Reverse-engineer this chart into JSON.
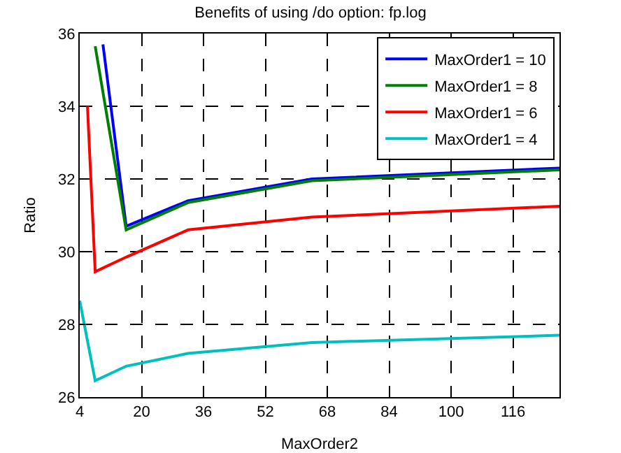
{
  "chart_data": {
    "type": "line",
    "title": "Benefits of using /do option: fp.log",
    "xlabel": "MaxOrder2",
    "ylabel": "Ratio",
    "xlim": [
      4,
      128
    ],
    "xticks": [
      4,
      20,
      36,
      52,
      68,
      84,
      100,
      116
    ],
    "ylim": [
      26,
      36
    ],
    "yticks": [
      26,
      28,
      30,
      32,
      34,
      36
    ],
    "grid": true,
    "legend": "top right",
    "line_style": "solid",
    "marker": "none",
    "series": [
      {
        "name": "MaxOrder1 = 10",
        "color": "#0000ff",
        "x": [
          10,
          16,
          32,
          64,
          128
        ],
        "values": [
          35.7,
          30.7,
          31.4,
          32.0,
          32.3
        ]
      },
      {
        "name": "MaxOrder1 = 8",
        "color": "#008000",
        "x": [
          8,
          16,
          32,
          64,
          128
        ],
        "values": [
          35.65,
          30.6,
          31.35,
          31.95,
          32.25
        ]
      },
      {
        "name": "MaxOrder1 = 6",
        "color": "#ff0000",
        "x": [
          6,
          8,
          16,
          32,
          64,
          128
        ],
        "values": [
          34.0,
          29.45,
          29.85,
          30.6,
          30.95,
          31.25
        ]
      },
      {
        "name": "MaxOrder1 = 4",
        "color": "#00bfbf",
        "x": [
          4,
          8,
          16,
          32,
          64,
          128
        ],
        "values": [
          28.65,
          26.45,
          26.85,
          27.2,
          27.5,
          27.7
        ]
      }
    ]
  }
}
